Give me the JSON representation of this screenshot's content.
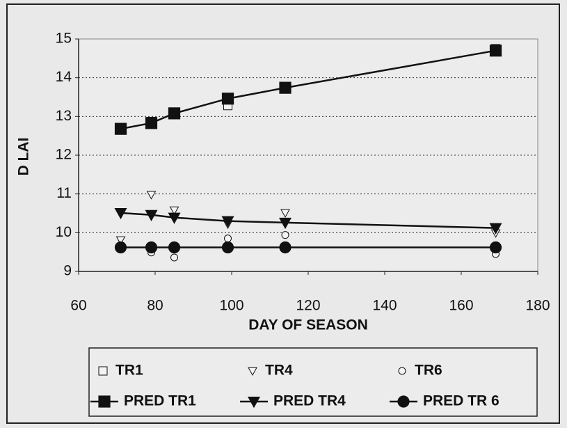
{
  "chart_data": {
    "type": "line",
    "xlabel": "DAY OF SEASON",
    "ylabel": "D LAI",
    "xlim": [
      60,
      180
    ],
    "xticks": [
      60,
      80,
      100,
      120,
      140,
      160,
      180
    ],
    "ylim": [
      9,
      15
    ],
    "yticks": [
      9,
      10,
      11,
      12,
      13,
      14,
      15
    ],
    "grid": true,
    "legend_position": "bottom",
    "series": [
      {
        "name": "TR1",
        "color": "#111111",
        "marker": "square-open",
        "line": false,
        "x": [
          71,
          79,
          85,
          99,
          114,
          169
        ],
        "values": [
          12.7,
          12.87,
          13.1,
          13.28,
          13.75,
          14.75
        ]
      },
      {
        "name": "TR4",
        "color": "#111111",
        "marker": "triangle-open",
        "line": false,
        "x": [
          71,
          79,
          85,
          99,
          114,
          169
        ],
        "values": [
          9.81,
          10.98,
          10.58,
          10.22,
          10.51,
          9.99
        ]
      },
      {
        "name": "TR6",
        "color": "#111111",
        "marker": "circle-open",
        "line": false,
        "x": [
          71,
          79,
          85,
          99,
          114,
          169
        ],
        "values": [
          9.65,
          9.49,
          9.36,
          9.85,
          9.94,
          9.45
        ]
      },
      {
        "name": "PRED TR1",
        "color": "#111111",
        "marker": "square",
        "line": true,
        "x": [
          71,
          79,
          85,
          99,
          114,
          169
        ],
        "values": [
          12.68,
          12.83,
          13.08,
          13.46,
          13.74,
          14.7
        ]
      },
      {
        "name": "PRED TR4",
        "color": "#111111",
        "marker": "triangle",
        "line": true,
        "x": [
          71,
          79,
          85,
          99,
          114,
          169
        ],
        "values": [
          10.51,
          10.46,
          10.39,
          10.3,
          10.26,
          10.12
        ]
      },
      {
        "name": "PRED TR 6",
        "color": "#111111",
        "marker": "circle",
        "line": true,
        "x": [
          71,
          79,
          85,
          99,
          114,
          169
        ],
        "values": [
          9.62,
          9.62,
          9.62,
          9.62,
          9.62,
          9.62
        ]
      }
    ]
  }
}
